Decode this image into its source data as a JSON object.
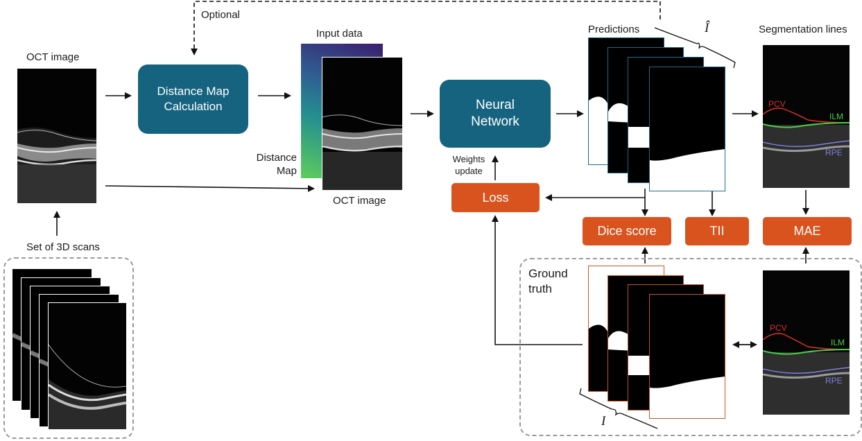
{
  "labels": {
    "oct_image_left": "OCT image",
    "set_of_3d_scans": "Set of 3D scans",
    "optional": "Optional",
    "input_data": "Input data",
    "distance_map": "Distance\nMap",
    "distance_map_l1": "Distance",
    "distance_map_l2": "Map",
    "oct_image_mid": "OCT image",
    "weights_update_l1": "Weights",
    "weights_update_l2": "update",
    "predictions": "Predictions",
    "i_hat": "Î",
    "segmentation_lines": "Segmentation lines",
    "ground_truth_l1": "Ground",
    "ground_truth_l2": "truth",
    "i_gt": "I"
  },
  "boxes": {
    "distance_map_calc_l1": "Distance Map",
    "distance_map_calc_l2": "Calculation",
    "neural_network_l1": "Neural",
    "neural_network_l2": "Network",
    "loss": "Loss",
    "dice_score": "Dice score",
    "tii": "TII",
    "mae": "MAE"
  },
  "segmentation": {
    "pcv": "PCV",
    "ilm": "ILM",
    "rpe": "RPE"
  },
  "colors": {
    "blue_box": "#15637f",
    "orange_box": "#d9531f",
    "pcv_line": "#e03030",
    "ilm_line": "#48d048",
    "rpe_line": "#8080e0",
    "prediction_border": "#1e6a8a",
    "ground_truth_border": "#c8532a"
  }
}
